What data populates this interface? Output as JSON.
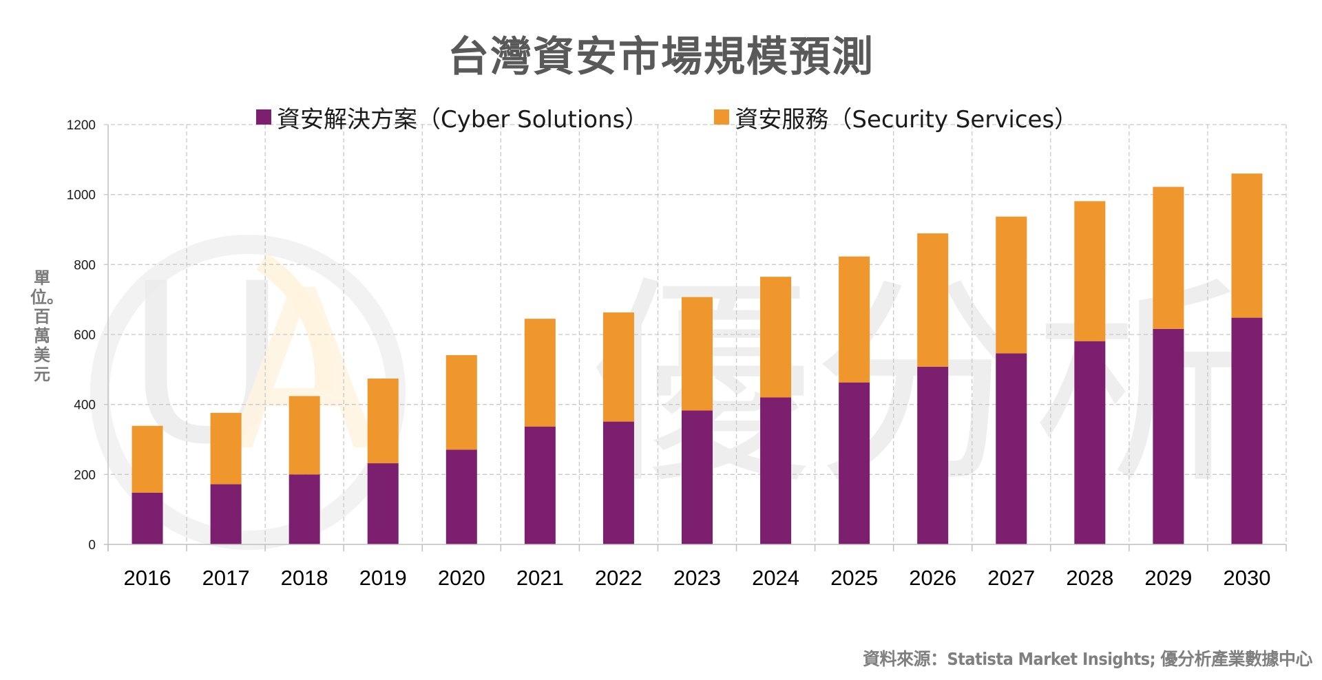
{
  "title": "台灣資安市場規模預測",
  "source": "資料來源：Statista Market Insights; 優分析產業數據中心",
  "watermark": {
    "logo_letters": "UA",
    "text": "優分析"
  },
  "chart_data": {
    "type": "bar",
    "stacked": true,
    "title": "台灣資安市場規模預測",
    "xlabel": "",
    "ylabel": "單位。百萬美元",
    "ylim": [
      0,
      1200
    ],
    "yticks": [
      0,
      200,
      400,
      600,
      800,
      1000,
      1200
    ],
    "grid": true,
    "legend_position": "top",
    "categories": [
      "2016",
      "2017",
      "2018",
      "2019",
      "2020",
      "2021",
      "2022",
      "2023",
      "2024",
      "2025",
      "2026",
      "2027",
      "2028",
      "2029",
      "2030"
    ],
    "series": [
      {
        "name": "資安解決方案（Cyber Solutions）",
        "color": "#7b1f6e",
        "values": [
          148,
          172,
          200,
          232,
          271,
          337,
          351,
          383,
          420,
          463,
          508,
          546,
          581,
          616,
          648
        ]
      },
      {
        "name": "資安服務（Security Services）",
        "color": "#ef962c",
        "values": [
          191,
          204,
          224,
          242,
          270,
          308,
          312,
          324,
          345,
          360,
          381,
          391,
          400,
          406,
          412
        ]
      }
    ],
    "totals": [
      339,
      376,
      424,
      474,
      541,
      645,
      663,
      707,
      765,
      823,
      889,
      937,
      981,
      1022,
      1060
    ]
  },
  "colors": {
    "cyber_solutions": "#7b1f6e",
    "security_services": "#ef962c",
    "grid": "#c8c8c8",
    "title": "#595959"
  }
}
